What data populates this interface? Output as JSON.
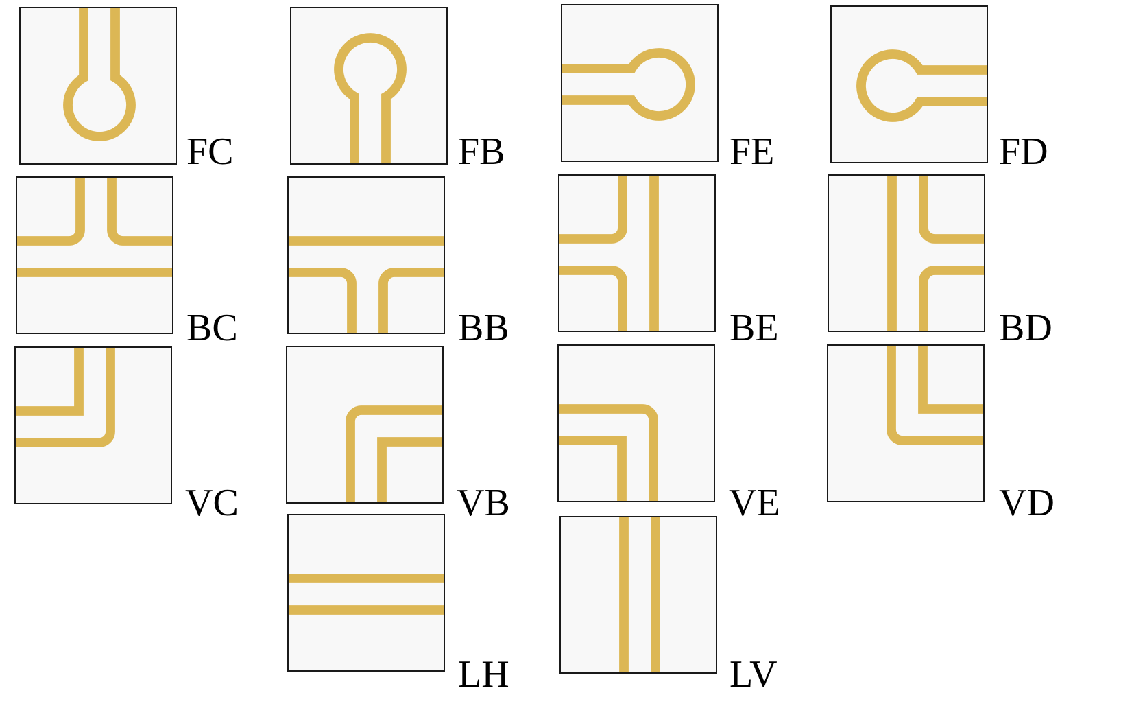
{
  "colors": {
    "track": "#dcb755",
    "tile_bg": "#f8f8f8",
    "border": "#1a1a1a",
    "gap": "#ffffff"
  },
  "tiles": [
    {
      "label": "FC",
      "shape": "end-top"
    },
    {
      "label": "FB",
      "shape": "end-bottom"
    },
    {
      "label": "FE",
      "shape": "end-left"
    },
    {
      "label": "FD",
      "shape": "end-right"
    },
    {
      "label": "BC",
      "shape": "tee-top"
    },
    {
      "label": "BB",
      "shape": "tee-bottom"
    },
    {
      "label": "BE",
      "shape": "tee-left"
    },
    {
      "label": "BD",
      "shape": "tee-right"
    },
    {
      "label": "VC",
      "shape": "corner-top-left"
    },
    {
      "label": "VB",
      "shape": "corner-bottom-right"
    },
    {
      "label": "VE",
      "shape": "corner-left-bottom"
    },
    {
      "label": "VD",
      "shape": "corner-top-right"
    },
    {
      "label": "LH",
      "shape": "line-horizontal"
    },
    {
      "label": "LV",
      "shape": "line-vertical"
    }
  ]
}
